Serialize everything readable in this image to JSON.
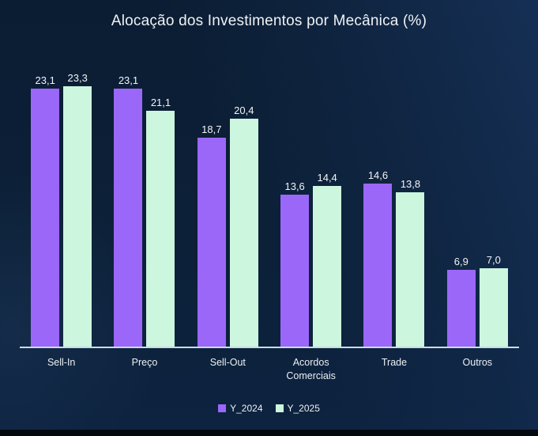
{
  "title": "Alocação dos Investimentos por Mecânica (%)",
  "colors": {
    "background": "#0C2038",
    "series_2024": "#9B67F9",
    "series_2025": "#CDF6DE",
    "axis_line": "#C9DCE9",
    "text": "#F2F4F6",
    "bottom_strip": "#040910"
  },
  "legend": {
    "position": "bottom",
    "items": [
      {
        "label": "Y_2024",
        "color": "#9B67F9"
      },
      {
        "label": "Y_2025",
        "color": "#CDF6DE"
      }
    ]
  },
  "chart_data": {
    "type": "bar",
    "title": "Alocação dos Investimentos por Mecânica (%)",
    "categories": [
      "Sell-In",
      "Preço",
      "Sell-Out",
      "Acordos Comerciais",
      "Trade",
      "Outros"
    ],
    "series": [
      {
        "name": "Y_2024",
        "color": "#9B67F9",
        "values": [
          23.1,
          23.1,
          18.7,
          13.6,
          14.6,
          6.9
        ],
        "labels": [
          "23,1",
          "23,1",
          "18,7",
          "13,6",
          "14,6",
          "6,9"
        ]
      },
      {
        "name": "Y_2025",
        "color": "#CDF6DE",
        "values": [
          23.3,
          21.1,
          20.4,
          14.4,
          13.8,
          7.0
        ],
        "labels": [
          "23,3",
          "21,1",
          "20,4",
          "14,4",
          "13,8",
          "7,0"
        ]
      }
    ],
    "xlabel": "",
    "ylabel": "",
    "ylim": [
      0,
      25
    ],
    "grid": false,
    "legend_position": "bottom",
    "value_label_format": "comma-decimal"
  }
}
